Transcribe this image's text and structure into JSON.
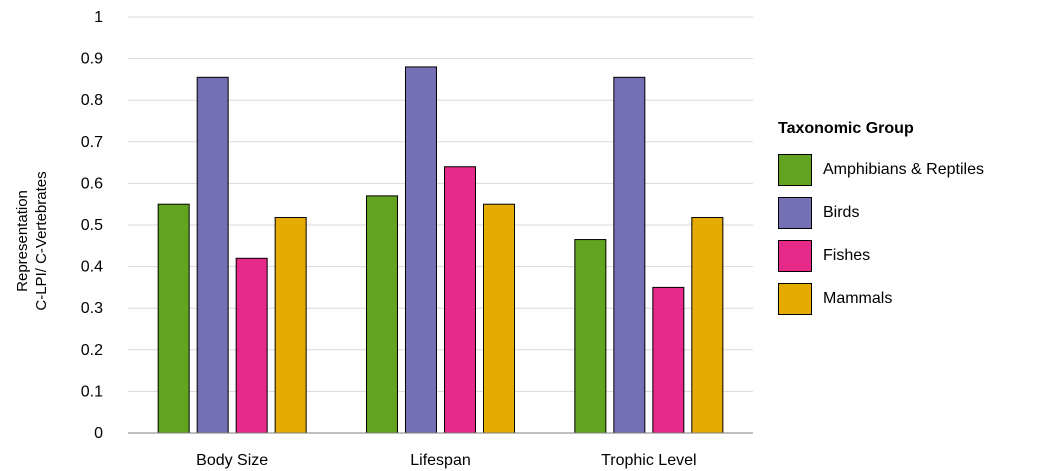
{
  "chart_data": {
    "type": "bar",
    "categories": [
      "Body Size",
      "Lifespan",
      "Trophic Level"
    ],
    "series": [
      {
        "name": "Amphibians & Reptiles",
        "color": "#62a420",
        "values": [
          0.55,
          0.57,
          0.465
        ]
      },
      {
        "name": "Birds",
        "color": "#7570b3",
        "values": [
          0.855,
          0.88,
          0.855
        ]
      },
      {
        "name": "Fishes",
        "color": "#e7298a",
        "values": [
          0.42,
          0.64,
          0.35
        ]
      },
      {
        "name": "Mammals",
        "color": "#e6ab02",
        "values": [
          0.518,
          0.55,
          0.518
        ]
      }
    ],
    "title": "",
    "xlabel": "",
    "ylabel_line1": "Representation",
    "ylabel_line2": "C-LPI/ C-Vertebrates",
    "ylim": [
      0,
      1
    ],
    "yticks": [
      "0",
      "0.1",
      "0.2",
      "0.3",
      "0.4",
      "0.5",
      "0.6",
      "0.7",
      "0.8",
      "0.9",
      "1"
    ],
    "grid": true,
    "legend_title": "Taxonomic Group",
    "legend_position": "right"
  }
}
